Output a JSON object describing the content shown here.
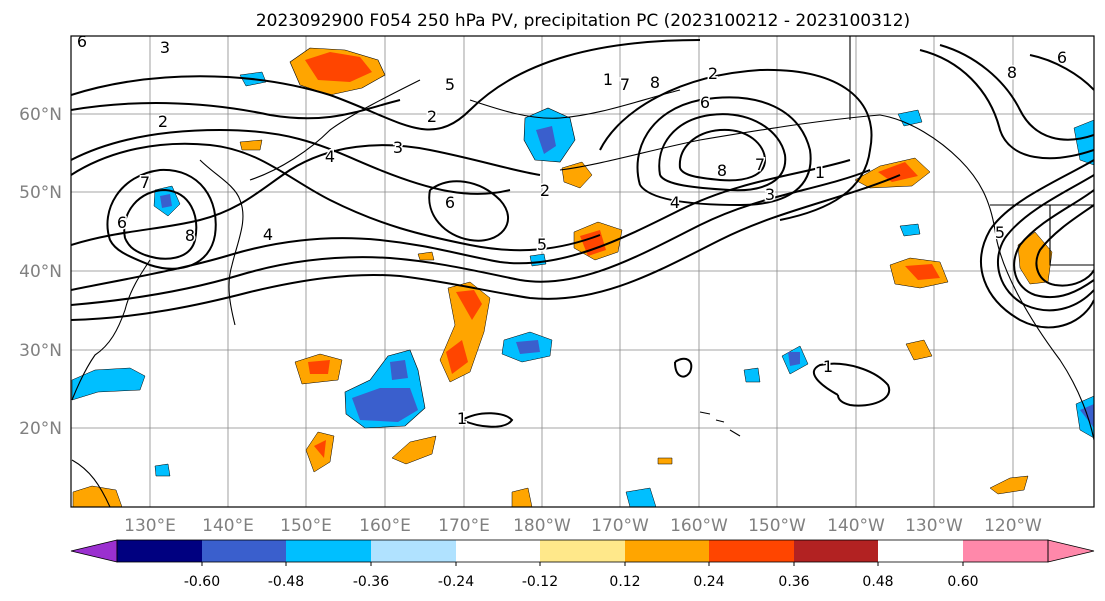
{
  "title": "2023092900 F054 250 hPa PV, precipitation PC (2023100212 - 2023100312)",
  "lat_labels": [
    "60°N",
    "50°N",
    "40°N",
    "30°N",
    "20°N"
  ],
  "lon_labels": [
    "130°E",
    "140°E",
    "150°E",
    "160°E",
    "170°E",
    "180°W",
    "170°W",
    "160°W",
    "150°W",
    "140°W",
    "130°W",
    "120°W"
  ],
  "colorbar": {
    "colors": [
      "#9b30d0",
      "#000080",
      "#3a5fcd",
      "#00bfff",
      "#b0e2ff",
      "#ffffff",
      "#ffe88a",
      "#ffa500",
      "#ff4500",
      "#b22222",
      "#ff88aa"
    ],
    "tick_labels": [
      "-0.60",
      "-0.48",
      "-0.36",
      "-0.24",
      "-0.12",
      "0.12",
      "0.24",
      "0.36",
      "0.48",
      "0.60"
    ]
  },
  "contour_labels": [
    "3",
    "6",
    "8",
    "2",
    "5",
    "4",
    "6",
    "2",
    "5",
    "7",
    "8",
    "6",
    "7",
    "1",
    "2",
    "4",
    "3",
    "1",
    "1",
    "8",
    "7",
    "1",
    "5",
    "6",
    "8",
    "6",
    "2",
    "3",
    "4"
  ],
  "legend_note": ""
}
